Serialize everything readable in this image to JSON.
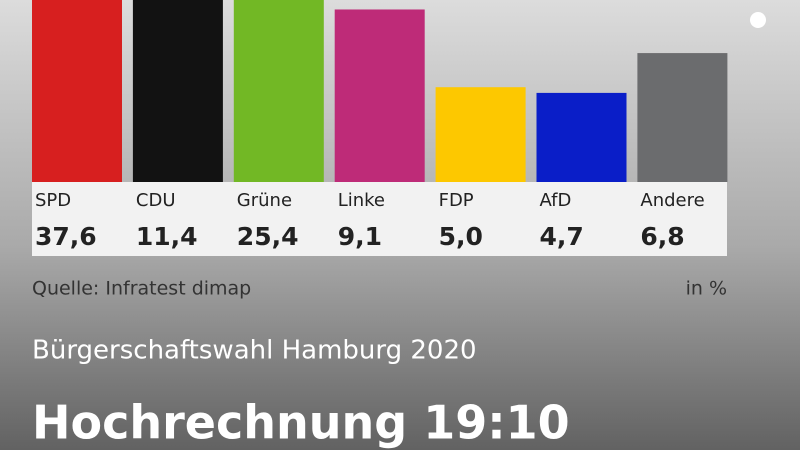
{
  "chart_data": {
    "type": "bar",
    "title": "Hochrechnung 19:10",
    "subtitle": "Bürgerschaftswahl Hamburg 2020",
    "source": "Quelle: Infratest dimap",
    "unit": "in %",
    "categories": [
      "SPD",
      "CDU",
      "Grüne",
      "Linke",
      "FDP",
      "AfD",
      "Andere"
    ],
    "values": [
      37.6,
      11.4,
      25.4,
      9.1,
      5.0,
      4.7,
      6.8
    ],
    "value_labels": [
      "37,6",
      "11,4",
      "25,4",
      "9,1",
      "5,0",
      "4,7",
      "6,8"
    ],
    "colors": [
      "#d71f1f",
      "#121212",
      "#72b825",
      "#be2b78",
      "#fdc800",
      "#0a1ec8",
      "#6b6c6e"
    ],
    "ylim": [
      0,
      9.6
    ]
  }
}
